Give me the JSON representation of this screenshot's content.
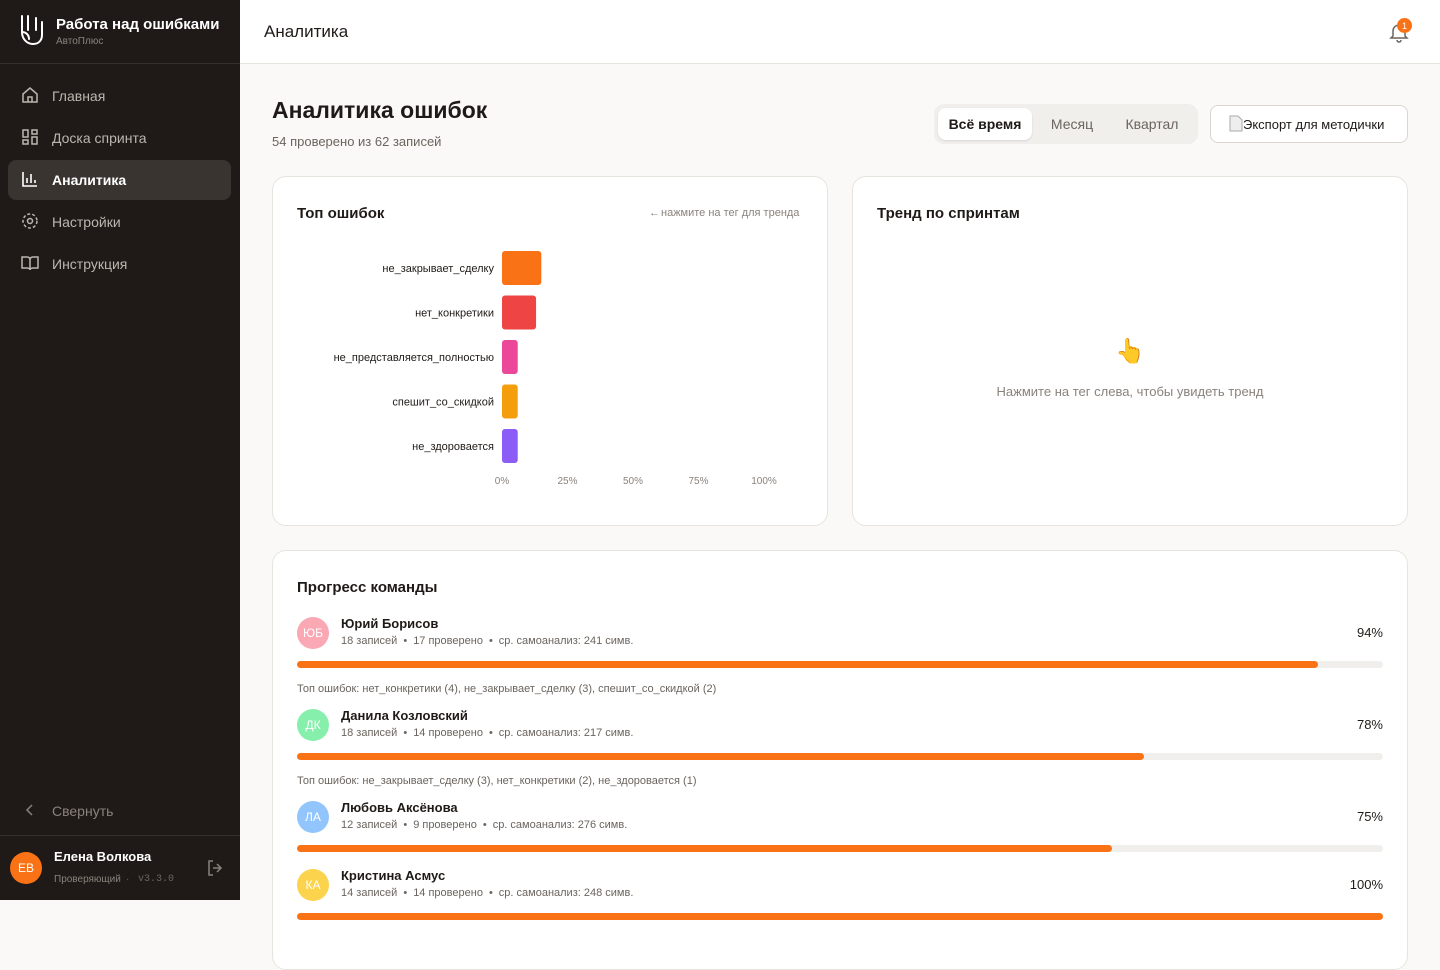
{
  "sidebar": {
    "app_title": "Работа над ошибками",
    "app_subtitle": "АвтоПлюс",
    "nav": [
      "Главная",
      "Доска спринта",
      "Аналитика",
      "Настройки",
      "Инструкция"
    ],
    "collapse": "Свернуть",
    "user": {
      "initials": "ЕВ",
      "name": "Елена Волкова",
      "role": "Проверяющий",
      "version": "v3.3.0"
    }
  },
  "header": {
    "title": "Аналитика",
    "notifications": 1
  },
  "page": {
    "title": "Аналитика ошибок",
    "subtitle": "54 проверено из 62 записей",
    "filters": [
      "Всё время",
      "Месяц",
      "Квартал"
    ],
    "export": "Экспорт для методички"
  },
  "chart_data": {
    "type": "hbar",
    "title": "Топ ошибок",
    "hint": "нажмите на тег для тренда",
    "categories": [
      "не_закрывает_сделку",
      "нет_конкретики",
      "не_представляется_полностью",
      "спешит_со_скидкой",
      "не_здоровается"
    ],
    "values": [
      15,
      13,
      6,
      6,
      6
    ],
    "colors": [
      "#f97316",
      "#ef4444",
      "#ec4899",
      "#f59e0b",
      "#8b5cf6"
    ],
    "xlim": [
      0,
      100
    ],
    "xticks": [
      {
        "value": 0,
        "label": "0%"
      },
      {
        "value": 25,
        "label": "25%"
      },
      {
        "value": 50,
        "label": "50%"
      },
      {
        "value": 75,
        "label": "75%"
      },
      {
        "value": 100,
        "label": "100%"
      }
    ]
  },
  "trend": {
    "title": "Тренд по спринтам",
    "icon": "👆",
    "message": "Нажмите на тег слева, чтобы увидеть тренд"
  },
  "team": {
    "title": "Прогресс команды",
    "members": [
      {
        "initials": "ЮБ",
        "color": "#f9a8b4",
        "name": "Юрий Борисов",
        "records": "18 записей",
        "checked": "17 проверено",
        "analysis": "ср. самоанализ: 241 симв.",
        "percent": 94,
        "percent_label": "94%",
        "top_errors": "Топ ошибок: нет_конкретики (4), не_закрывает_сделку (3), спешит_со_скидкой (2)"
      },
      {
        "initials": "ДК",
        "color": "#86efac",
        "name": "Данила Козловский",
        "records": "18 записей",
        "checked": "14 проверено",
        "analysis": "ср. самоанализ: 217 симв.",
        "percent": 78,
        "percent_label": "78%",
        "top_errors": "Топ ошибок: не_закрывает_сделку (3), нет_конкретики (2), не_здоровается (1)"
      },
      {
        "initials": "ЛА",
        "color": "#93c5fd",
        "name": "Любовь Аксёнова",
        "records": "12 записей",
        "checked": "9 проверено",
        "analysis": "ср. самоанализ: 276 симв.",
        "percent": 75,
        "percent_label": "75%"
      },
      {
        "initials": "КА",
        "color": "#fcd34d",
        "name": "Кристина Асмус",
        "records": "14 записей",
        "checked": "14 проверено",
        "analysis": "ср. самоанализ: 248 симв.",
        "percent": 100,
        "percent_label": "100%"
      }
    ]
  }
}
